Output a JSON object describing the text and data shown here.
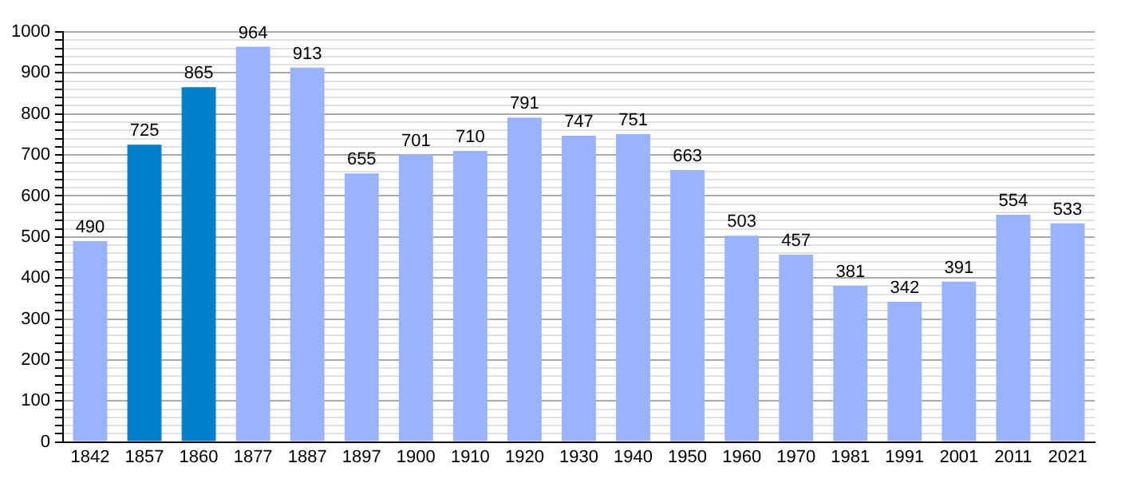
{
  "chart_data": {
    "type": "bar",
    "categories": [
      "1842",
      "1857",
      "1860",
      "1877",
      "1887",
      "1897",
      "1900",
      "1910",
      "1920",
      "1930",
      "1940",
      "1950",
      "1960",
      "1970",
      "1981",
      "1991",
      "2001",
      "2011",
      "2021"
    ],
    "values": [
      490,
      725,
      865,
      964,
      913,
      655,
      701,
      710,
      791,
      747,
      751,
      663,
      503,
      457,
      381,
      342,
      391,
      554,
      533
    ],
    "colors": [
      "#99b3ff",
      "#0080cc",
      "#0080cc",
      "#99b3ff",
      "#99b3ff",
      "#99b3ff",
      "#99b3ff",
      "#99b3ff",
      "#99b3ff",
      "#99b3ff",
      "#99b3ff",
      "#99b3ff",
      "#99b3ff",
      "#99b3ff",
      "#99b3ff",
      "#99b3ff",
      "#99b3ff",
      "#99b3ff",
      "#99b3ff"
    ],
    "ylim": [
      0,
      1000
    ],
    "yticks": [
      0,
      {
        "value": 20,
        "label": null
      },
      {
        "value": 40,
        "label": null
      },
      {
        "value": 60,
        "label": null
      },
      {
        "value": 80,
        "label": null
      },
      100,
      {
        "value": 120,
        "label": null
      },
      {
        "value": 140,
        "label": null
      },
      {
        "value": 160,
        "label": null
      },
      {
        "value": 180,
        "label": null
      },
      200,
      {
        "value": 220,
        "label": null
      },
      {
        "value": 240,
        "label": null
      },
      {
        "value": 260,
        "label": null
      },
      {
        "value": 280,
        "label": null
      },
      300,
      {
        "value": 320,
        "label": null
      },
      {
        "value": 340,
        "label": null
      },
      {
        "value": 360,
        "label": null
      },
      {
        "value": 380,
        "label": null
      },
      400,
      {
        "value": 420,
        "label": null
      },
      {
        "value": 440,
        "label": null
      },
      {
        "value": 460,
        "label": null
      },
      {
        "value": 480,
        "label": null
      },
      500,
      {
        "value": 520,
        "label": null
      },
      {
        "value": 540,
        "label": null
      },
      {
        "value": 560,
        "label": null
      },
      {
        "value": 580,
        "label": null
      },
      600,
      {
        "value": 620,
        "label": null
      },
      {
        "value": 640,
        "label": null
      },
      {
        "value": 660,
        "label": null
      },
      {
        "value": 680,
        "label": null
      },
      700,
      {
        "value": 720,
        "label": null
      },
      {
        "value": 740,
        "label": null
      },
      {
        "value": 760,
        "label": null
      },
      {
        "value": 780,
        "label": null
      },
      800,
      {
        "value": 820,
        "label": null
      },
      {
        "value": 840,
        "label": null
      },
      {
        "value": 860,
        "label": null
      },
      {
        "value": 880,
        "label": null
      },
      900,
      {
        "value": 920,
        "label": null
      },
      {
        "value": 940,
        "label": null
      },
      {
        "value": 960,
        "label": null
      },
      {
        "value": 980,
        "label": null
      },
      1000
    ],
    "grid": "y",
    "data_labels": true,
    "legend": false
  }
}
